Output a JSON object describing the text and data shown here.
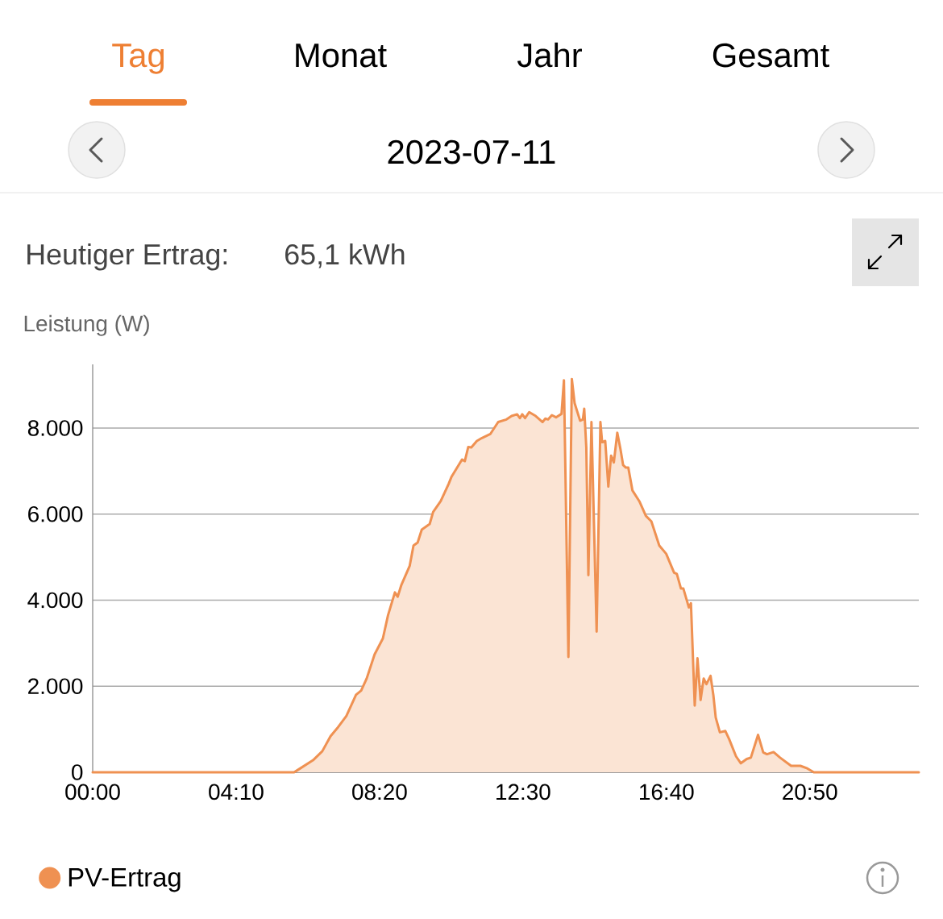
{
  "chart_data": {
    "type": "area",
    "title": "2023-07-11",
    "ylabel": "Leistung (W)",
    "annotations": [
      "Tag",
      "Monat",
      "Jahr",
      "Gesamt",
      "Heutiger Ertrag:",
      "65,1 kWh"
    ],
    "xlim": [
      0,
      24
    ],
    "xticks": [
      {
        "value": 0,
        "label": "00:00"
      },
      {
        "value": 4.1667,
        "label": "04:10"
      },
      {
        "value": 8.3333,
        "label": "08:20"
      },
      {
        "value": 12.5,
        "label": "12:30"
      },
      {
        "value": 16.6667,
        "label": "16:40"
      },
      {
        "value": 20.8333,
        "label": "20:50"
      }
    ],
    "ylim": [
      0,
      9480
    ],
    "yticks": [
      0,
      {
        "value": 2000,
        "label": "2.000"
      },
      {
        "value": 4000,
        "label": "4.000"
      },
      {
        "value": 6000,
        "label": "6.000"
      },
      {
        "value": 8000,
        "label": "8.000"
      }
    ],
    "grid": "y",
    "legend": "bottom left",
    "series": [
      {
        "name": "PV-Ertrag",
        "color": "#ef9152",
        "x": [
          0,
          5.85,
          5.93,
          6.4,
          6.67,
          6.91,
          7.1,
          7.37,
          7.65,
          7.8,
          7.96,
          8.19,
          8.43,
          8.58,
          8.78,
          8.86,
          8.97,
          9.21,
          9.32,
          9.44,
          9.56,
          9.79,
          9.89,
          10.11,
          10.34,
          10.42,
          10.73,
          10.81,
          10.91,
          11.0,
          11.16,
          11.31,
          11.55,
          11.78,
          12.02,
          12.17,
          12.33,
          12.41,
          12.48,
          12.56,
          12.68,
          12.87,
          13.07,
          13.15,
          13.23,
          13.34,
          13.46,
          13.62,
          13.69,
          13.82,
          13.92,
          14.0,
          14.16,
          14.24,
          14.28,
          14.34,
          14.4,
          14.49,
          14.64,
          14.75,
          14.8,
          14.89,
          14.98,
          15.06,
          15.14,
          15.24,
          15.33,
          15.41,
          15.49,
          15.56,
          15.68,
          15.88,
          16.07,
          16.23,
          16.46,
          16.66,
          16.89,
          16.97,
          17.09,
          17.16,
          17.32,
          17.38,
          17.49,
          17.57,
          17.66,
          17.75,
          17.83,
          17.95,
          18.03,
          18.1,
          18.22,
          18.38,
          18.49,
          18.69,
          18.83,
          19.0,
          19.12,
          19.33,
          19.48,
          19.59,
          19.78,
          19.97,
          20.29,
          20.56,
          20.76,
          20.95,
          24
        ],
        "values": [
          0,
          0,
          40,
          280,
          490,
          840,
          1020,
          1310,
          1800,
          1900,
          2180,
          2740,
          3110,
          3650,
          4180,
          4080,
          4360,
          4800,
          5270,
          5340,
          5640,
          5770,
          6050,
          6300,
          6700,
          6860,
          7270,
          7230,
          7560,
          7550,
          7700,
          7770,
          7860,
          8140,
          8200,
          8280,
          8320,
          8230,
          8320,
          8230,
          8370,
          8280,
          8140,
          8220,
          8200,
          8300,
          8250,
          8330,
          9110,
          2680,
          9140,
          8580,
          8170,
          8200,
          8450,
          7550,
          4580,
          8140,
          3270,
          8140,
          7670,
          7700,
          6640,
          7360,
          7200,
          7890,
          7520,
          7140,
          7080,
          7080,
          6550,
          6300,
          5960,
          5830,
          5270,
          5080,
          4640,
          4610,
          4270,
          4270,
          3830,
          3930,
          1550,
          2650,
          1680,
          2180,
          2050,
          2240,
          1800,
          1270,
          930,
          960,
          770,
          370,
          210,
          310,
          340,
          870,
          460,
          420,
          470,
          340,
          150,
          150,
          90,
          0,
          0
        ]
      }
    ]
  }
}
